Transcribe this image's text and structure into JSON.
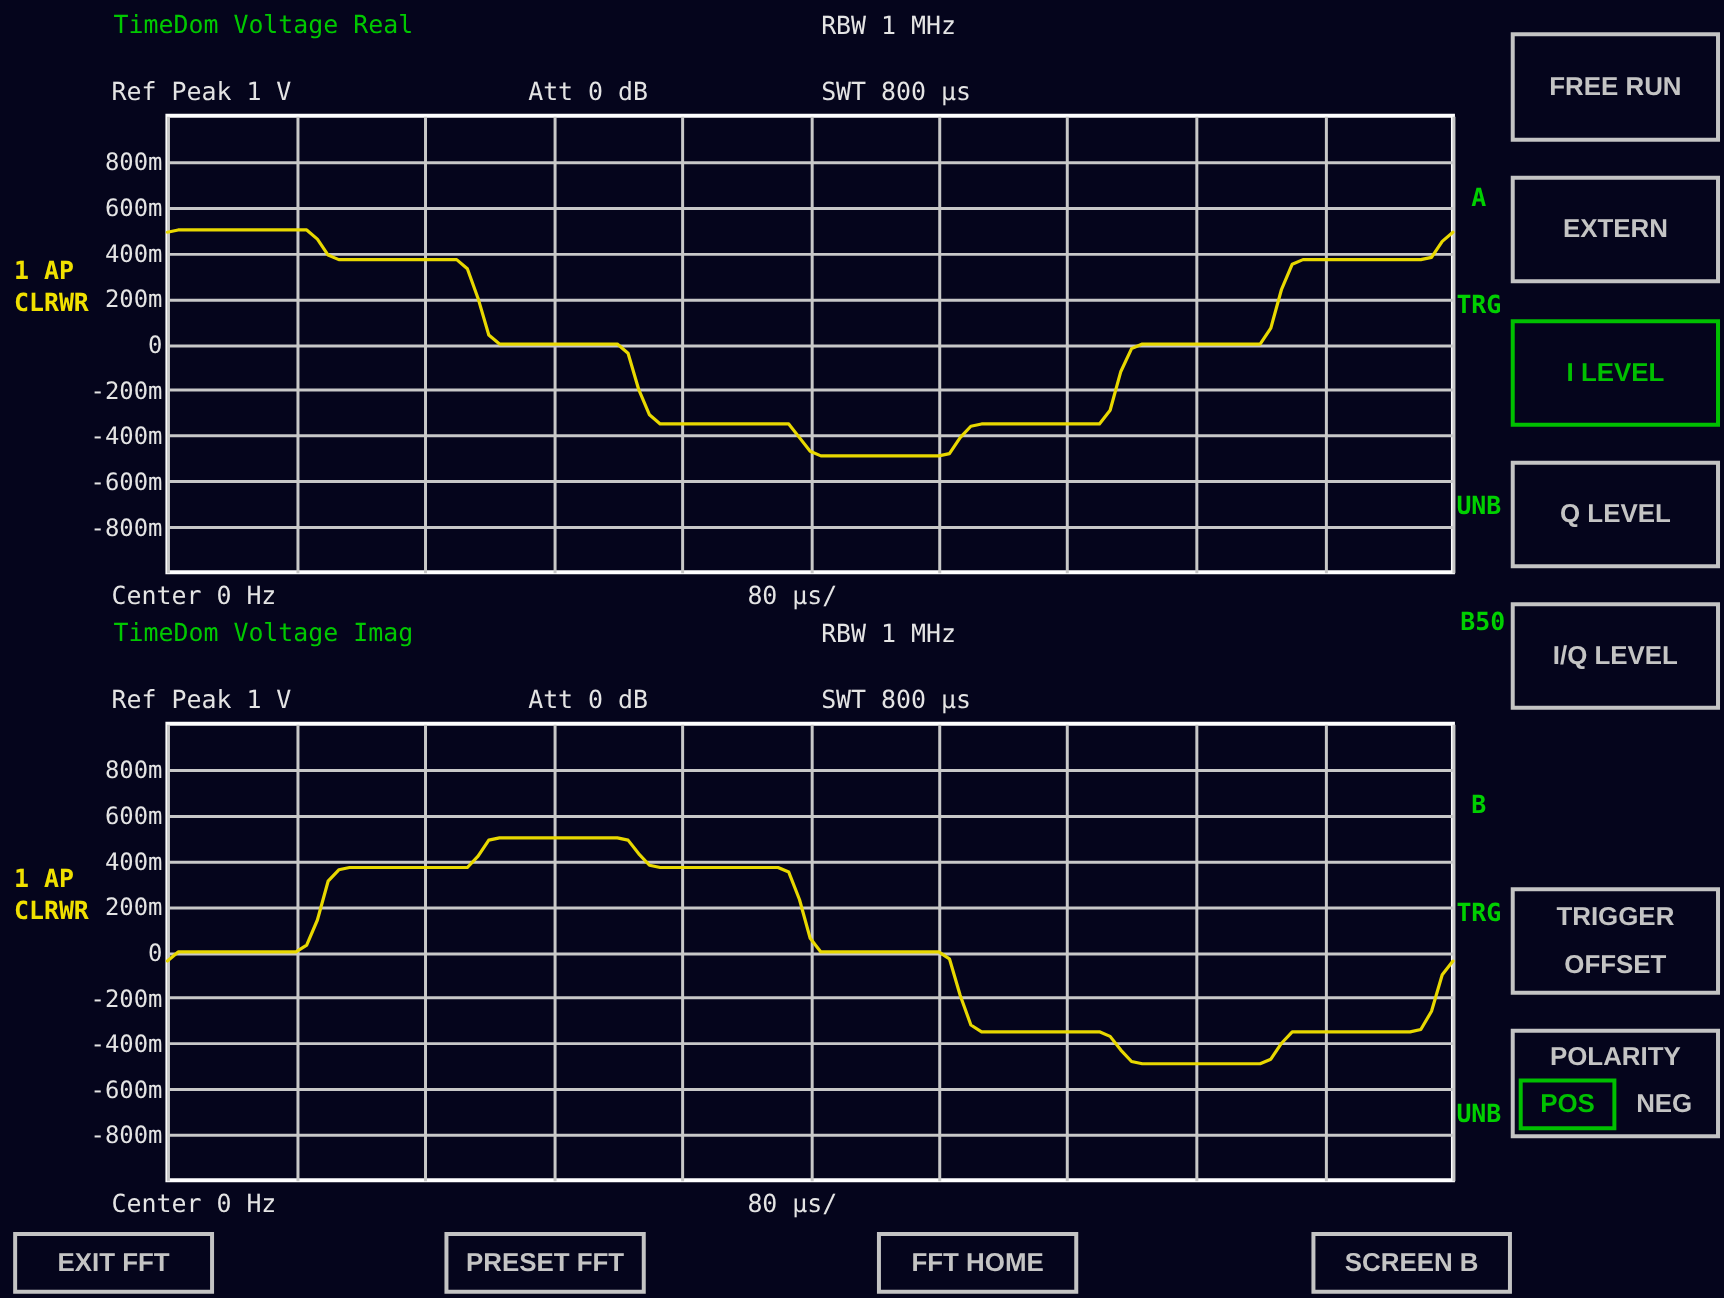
{
  "chart_data": [
    {
      "type": "line",
      "title": "TimeDom Voltage Real",
      "annotations": [
        "RBW 1 MHz",
        "Ref Peak 1 V",
        "Att 0 dB",
        "SWT 800 µs",
        "Center 0 Hz",
        "80 µs/",
        "1 AP",
        "CLRWR",
        "A",
        "TRG",
        "UNB",
        "B50"
      ],
      "categories": [
        null,
        null,
        null,
        null,
        null,
        null,
        null,
        null,
        null,
        null,
        null,
        null,
        null,
        null,
        null,
        null,
        null,
        null,
        null,
        null,
        null,
        null,
        null,
        null,
        null,
        null,
        null,
        null,
        null,
        null,
        null,
        null,
        null,
        null,
        null,
        null,
        null,
        null,
        null,
        null,
        null,
        null,
        null,
        null,
        null,
        null,
        null,
        null,
        null,
        null,
        null,
        null,
        null,
        null,
        null,
        null,
        null,
        null,
        null,
        null,
        null,
        null,
        null,
        null,
        null,
        null,
        null,
        null,
        null,
        null,
        null,
        null,
        null,
        null,
        null,
        null,
        null,
        null,
        null,
        null,
        null,
        null,
        null,
        null,
        null,
        null,
        null,
        null,
        null,
        null,
        null,
        null,
        null,
        null,
        null,
        null,
        null,
        null,
        null,
        null,
        null,
        null,
        null,
        null,
        null,
        null,
        null,
        null,
        null,
        null,
        null,
        null,
        null,
        null,
        null,
        null,
        null,
        null,
        null,
        null,
        null
      ],
      "series": [
        {
          "color": "#e8d800",
          "values": [
            490,
            500,
            500,
            500,
            500,
            500,
            500,
            500,
            500,
            500,
            500,
            500,
            500,
            500,
            460,
            390,
            370,
            370,
            370,
            370,
            370,
            370,
            370,
            370,
            370,
            370,
            370,
            370,
            330,
            200,
            40,
            0,
            0,
            0,
            0,
            0,
            0,
            0,
            0,
            0,
            0,
            0,
            0,
            -40,
            -200,
            -310,
            -350,
            -350,
            -350,
            -350,
            -350,
            -350,
            -350,
            -350,
            -350,
            -350,
            -350,
            -350,
            -350,
            -410,
            -470,
            -490,
            -490,
            -490,
            -490,
            -490,
            -490,
            -490,
            -490,
            -490,
            -490,
            -490,
            -490,
            -480,
            -410,
            -360,
            -350,
            -350,
            -350,
            -350,
            -350,
            -350,
            -350,
            -350,
            -350,
            -350,
            -350,
            -350,
            -290,
            -120,
            -20,
            0,
            0,
            0,
            0,
            0,
            0,
            0,
            0,
            0,
            0,
            0,
            0,
            70,
            240,
            350,
            370,
            370,
            370,
            370,
            370,
            370,
            370,
            370,
            370,
            370,
            370,
            370,
            380,
            450,
            490
          ]
        }
      ],
      "ylim": [
        -1000,
        1000
      ],
      "yticks": [
        {
          "value": -800,
          "label": "-800m"
        },
        {
          "value": -600,
          "label": "-600m"
        },
        {
          "value": -400,
          "label": "-400m"
        },
        {
          "value": -200,
          "label": "-200m"
        },
        0,
        {
          "value": 200,
          "label": "200m"
        },
        {
          "value": 400,
          "label": "400m"
        },
        {
          "value": 600,
          "label": "600m"
        },
        {
          "value": 800,
          "label": "800m"
        }
      ],
      "grid": true,
      "tick_labels": "y"
    },
    {
      "type": "line",
      "title": "TimeDom Voltage Imag",
      "annotations": [
        "RBW 1 MHz",
        "Ref Peak 1 V",
        "Att 0 dB",
        "SWT 800 µs",
        "Center 0 Hz",
        "80 µs/",
        "1 AP",
        "CLRWR",
        "B",
        "TRG",
        "UNB"
      ],
      "categories": [
        null,
        null,
        null,
        null,
        null,
        null,
        null,
        null,
        null,
        null,
        null,
        null,
        null,
        null,
        null,
        null,
        null,
        null,
        null,
        null,
        null,
        null,
        null,
        null,
        null,
        null,
        null,
        null,
        null,
        null,
        null,
        null,
        null,
        null,
        null,
        null,
        null,
        null,
        null,
        null,
        null,
        null,
        null,
        null,
        null,
        null,
        null,
        null,
        null,
        null,
        null,
        null,
        null,
        null,
        null,
        null,
        null,
        null,
        null,
        null,
        null,
        null,
        null,
        null,
        null,
        null,
        null,
        null,
        null,
        null,
        null,
        null,
        null,
        null,
        null,
        null,
        null,
        null,
        null,
        null,
        null,
        null,
        null,
        null,
        null,
        null,
        null,
        null,
        null,
        null,
        null,
        null,
        null,
        null,
        null,
        null,
        null,
        null,
        null,
        null,
        null,
        null,
        null,
        null,
        null,
        null,
        null,
        null,
        null,
        null,
        null,
        null,
        null,
        null,
        null,
        null,
        null,
        null,
        null,
        null,
        null
      ],
      "series": [
        {
          "color": "#e8d800",
          "values": [
            -40,
            0,
            0,
            0,
            0,
            0,
            0,
            0,
            0,
            0,
            0,
            0,
            0,
            30,
            140,
            310,
            360,
            370,
            370,
            370,
            370,
            370,
            370,
            370,
            370,
            370,
            370,
            370,
            370,
            420,
            490,
            500,
            500,
            500,
            500,
            500,
            500,
            500,
            500,
            500,
            500,
            500,
            500,
            490,
            430,
            380,
            370,
            370,
            370,
            370,
            370,
            370,
            370,
            370,
            370,
            370,
            370,
            370,
            350,
            230,
            60,
            0,
            0,
            0,
            0,
            0,
            0,
            0,
            0,
            0,
            0,
            0,
            0,
            -30,
            -190,
            -320,
            -350,
            -350,
            -350,
            -350,
            -350,
            -350,
            -350,
            -350,
            -350,
            -350,
            -350,
            -350,
            -370,
            -430,
            -480,
            -490,
            -490,
            -490,
            -490,
            -490,
            -490,
            -490,
            -490,
            -490,
            -490,
            -490,
            -490,
            -470,
            -400,
            -350,
            -350,
            -350,
            -350,
            -350,
            -350,
            -350,
            -350,
            -350,
            -350,
            -350,
            -350,
            -340,
            -260,
            -100,
            -40
          ]
        }
      ],
      "ylim": [
        -1000,
        1000
      ],
      "yticks": [
        {
          "value": -800,
          "label": "-800m"
        },
        {
          "value": -600,
          "label": "-600m"
        },
        {
          "value": -400,
          "label": "-400m"
        },
        {
          "value": -200,
          "label": "-200m"
        },
        0,
        {
          "value": 200,
          "label": "200m"
        },
        {
          "value": 400,
          "label": "400m"
        },
        {
          "value": 600,
          "label": "600m"
        },
        {
          "value": 800,
          "label": "800m"
        }
      ],
      "grid": true,
      "tick_labels": "y"
    },
    {
      "type": "other",
      "annotations": [
        "FREE RUN",
        "EXTERN",
        "I LEVEL",
        "Q LEVEL",
        "I/Q LEVEL",
        "TRIGGER OFFSET",
        "POLARITY",
        "POS",
        "NEG",
        "EXIT FFT",
        "PRESET FFT",
        "FFT HOME",
        "SCREEN B"
      ]
    }
  ]
}
